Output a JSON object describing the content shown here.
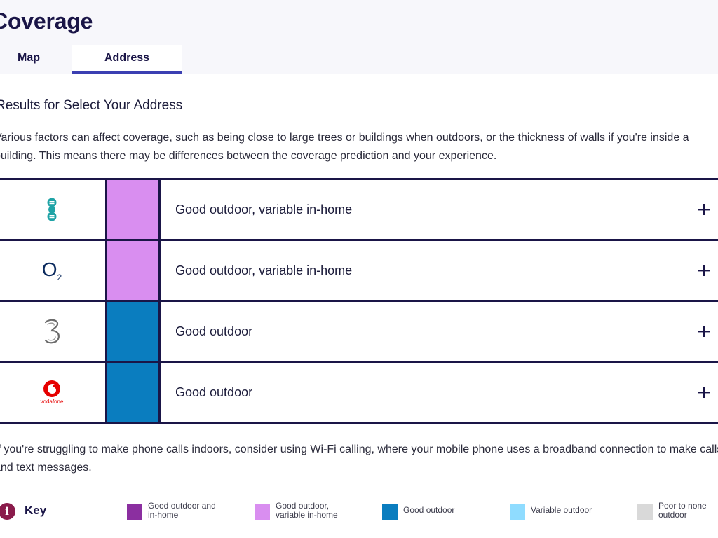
{
  "header": {
    "title": "Coverage",
    "tabs": [
      {
        "label": "Map",
        "active": false
      },
      {
        "label": "Address",
        "active": true
      }
    ]
  },
  "results": {
    "heading": "Results for Select Your Address",
    "intro": "Various factors can affect coverage, such as being close to large trees or buildings when outdoors, or the thickness of walls if you're inside a building. This means there may be differences between the coverage prediction and your experience."
  },
  "operators": [
    {
      "logo": "ee-logo",
      "coverage": "Good outdoor, variable in-home",
      "color": "#d98ef0"
    },
    {
      "logo": "o2-logo",
      "coverage": "Good outdoor, variable in-home",
      "color": "#d98ef0"
    },
    {
      "logo": "three-logo",
      "coverage": "Good outdoor",
      "color": "#0a7dbf"
    },
    {
      "logo": "vodafone-logo",
      "logo_text": "vodafone",
      "coverage": "Good outdoor",
      "color": "#0a7dbf"
    }
  ],
  "o2_text": {
    "letter": "O",
    "sub": "2"
  },
  "wifi_note": "If you're struggling to make phone calls indoors, consider using Wi-Fi calling, where your mobile phone uses a broadband connection to make calls and text messages.",
  "key": {
    "icon": "info-icon",
    "icon_glyph": "i",
    "title": "Key",
    "items": [
      {
        "line1": "Good outdoor and",
        "line2": "in-home",
        "color": "#8b2fa0"
      },
      {
        "line1": "Good outdoor,",
        "line2": "variable in-home",
        "color": "#d98ef0"
      },
      {
        "line1": "Good outdoor",
        "line2": "",
        "color": "#0a7dbf"
      },
      {
        "line1": "Variable outdoor",
        "line2": "",
        "color": "#8fdcff"
      },
      {
        "line1": "Poor to none",
        "line2": "outdoor",
        "color": "#d9d9d9"
      }
    ]
  },
  "icons": {
    "expand": "plus-icon"
  }
}
